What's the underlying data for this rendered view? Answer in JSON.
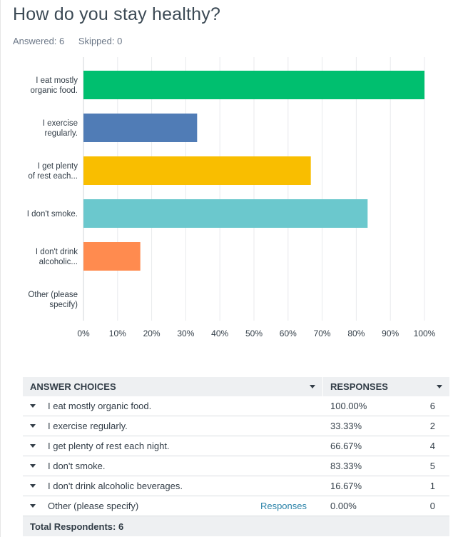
{
  "question": {
    "title": "How do you stay healthy?",
    "answered_label": "Answered: 6",
    "skipped_label": "Skipped: 0"
  },
  "chart_data": {
    "type": "bar",
    "orientation": "horizontal",
    "categories": [
      [
        "I eat mostly",
        "organic food."
      ],
      [
        "I exercise",
        "regularly."
      ],
      [
        "I get plenty",
        "of rest each..."
      ],
      [
        "I don't smoke."
      ],
      [
        "I don't drink",
        "alcoholic..."
      ],
      [
        "Other (please",
        "specify)"
      ]
    ],
    "values": [
      100,
      33.33,
      66.67,
      83.33,
      16.67,
      0
    ],
    "colors": [
      "#00bf6f",
      "#507cb6",
      "#f9be00",
      "#6bc8cd",
      "#ff8b4f",
      "#7d5e90"
    ],
    "xlim": [
      0,
      100
    ],
    "x_ticks": [
      "0%",
      "10%",
      "20%",
      "30%",
      "40%",
      "50%",
      "60%",
      "70%",
      "80%",
      "90%",
      "100%"
    ],
    "grid": true
  },
  "table": {
    "header_choices": "ANSWER CHOICES",
    "header_responses": "RESPONSES",
    "rows": [
      {
        "answer": "I eat mostly organic food.",
        "pct": "100.00%",
        "count": "6",
        "link": ""
      },
      {
        "answer": "I exercise regularly.",
        "pct": "33.33%",
        "count": "2",
        "link": ""
      },
      {
        "answer": "I get plenty of rest each night.",
        "pct": "66.67%",
        "count": "4",
        "link": ""
      },
      {
        "answer": "I don't smoke.",
        "pct": "83.33%",
        "count": "5",
        "link": ""
      },
      {
        "answer": "I don't drink alcoholic beverages.",
        "pct": "16.67%",
        "count": "1",
        "link": ""
      },
      {
        "answer": "Other (please specify)",
        "pct": "0.00%",
        "count": "0",
        "link": "Responses"
      }
    ],
    "total_label": "Total Respondents: 6"
  }
}
